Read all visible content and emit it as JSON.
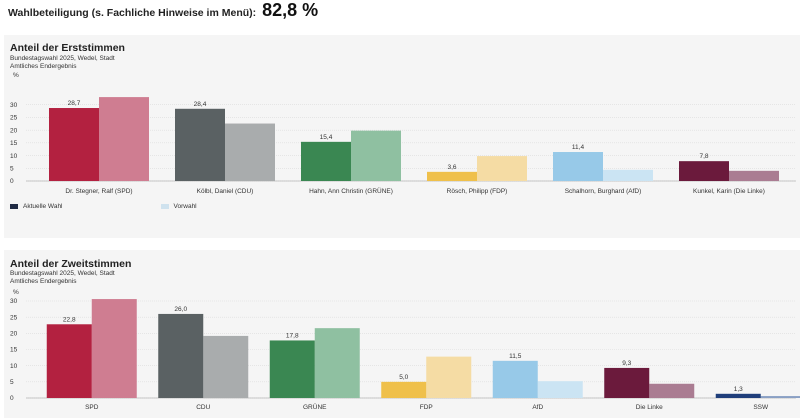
{
  "turnout": {
    "label": "Wahlbeteiligung (s. Fachliche Hinweise im Menü):",
    "value": "82,8 %"
  },
  "legend": {
    "current": "Aktuelle Wahl",
    "previous": "Vorwahl",
    "current_color": "#1f2a44",
    "previous_color": "#cfe2ee"
  },
  "chart_data": [
    {
      "type": "bar",
      "title": "Anteil der Erststimmen",
      "subtitle_1": "Bundestagswahl 2025, Wedel, Stadt",
      "subtitle_2": "Amtliches Endergebnis",
      "ylabel": "%",
      "ylim": [
        0,
        35
      ],
      "yticks": [
        0,
        5,
        10,
        15,
        20,
        25,
        30
      ],
      "categories": [
        "Dr. Stegner, Ralf (SPD)",
        "Kölbl, Daniel (CDU)",
        "Hahn, Ann Christin (GRÜNE)",
        "Rösch, Philipp (FDP)",
        "Schalhorn, Burghard (AfD)",
        "Kunkel, Karin (Die Linke)"
      ],
      "series": [
        {
          "name": "Aktuelle Wahl",
          "values": [
            28.7,
            28.4,
            15.4,
            3.6,
            11.4,
            7.8
          ],
          "labels": [
            "28,7",
            "28,4",
            "15,4",
            "3,6",
            "11,4",
            "7,8"
          ]
        },
        {
          "name": "Vorwahl",
          "values": [
            33.0,
            22.6,
            19.8,
            9.8,
            4.4,
            4.0
          ]
        }
      ],
      "colors": [
        "#b32140",
        "#5a6163",
        "#3a8752",
        "#efc04b",
        "#97c9e8",
        "#6b1a3c"
      ],
      "prev_colors": [
        "#cf7d91",
        "#a9acad",
        "#8fc0a1",
        "#f5dca4",
        "#cbe4f3",
        "#aa7c92"
      ]
    },
    {
      "type": "bar",
      "title": "Anteil der Zweitstimmen",
      "subtitle_1": "Bundestagswahl 2025, Wedel, Stadt",
      "subtitle_2": "Amtliches Endergebnis",
      "ylabel": "%",
      "ylim": [
        0,
        30
      ],
      "yticks": [
        0,
        5,
        10,
        15,
        20,
        25,
        30
      ],
      "categories": [
        "SPD",
        "CDU",
        "GRÜNE",
        "FDP",
        "AfD",
        "Die Linke",
        "SSW"
      ],
      "series": [
        {
          "name": "Aktuelle Wahl",
          "values": [
            22.8,
            26.0,
            17.8,
            5.0,
            11.5,
            9.3,
            1.3
          ],
          "labels": [
            "22,8",
            "26,0",
            "17,8",
            "5,0",
            "11,5",
            "9,3",
            "1,3"
          ]
        },
        {
          "name": "Vorwahl",
          "values": [
            30.6,
            19.2,
            21.6,
            12.8,
            5.2,
            4.4,
            0.6
          ]
        }
      ],
      "colors": [
        "#b32140",
        "#5a6163",
        "#3a8752",
        "#efc04b",
        "#97c9e8",
        "#6b1a3c",
        "#1f3e7a"
      ],
      "prev_colors": [
        "#cf7d91",
        "#a9acad",
        "#8fc0a1",
        "#f5dca4",
        "#cbe4f3",
        "#aa7c92",
        "#8aa0c4"
      ]
    }
  ]
}
